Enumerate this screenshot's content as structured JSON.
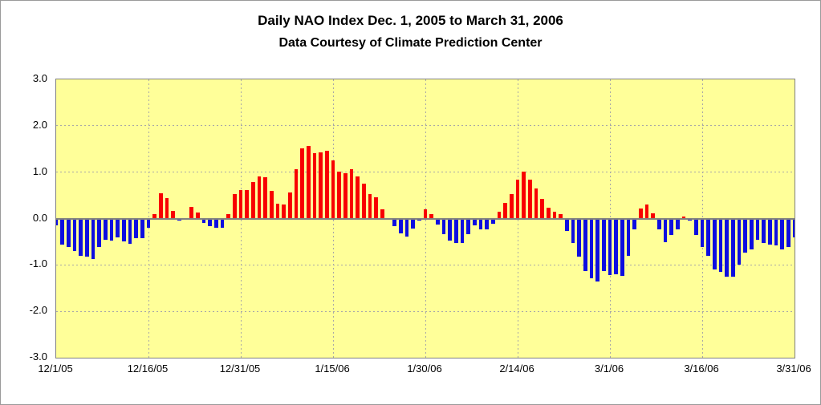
{
  "title": "Daily NAO Index Dec. 1, 2005 to March 31, 2006",
  "subtitle": "Data Courtesy of Climate Prediction Center",
  "chart_data": {
    "type": "bar",
    "title": "Daily NAO Index Dec. 1, 2005 to March 31, 2006",
    "subtitle": "Data Courtesy of Climate Prediction Center",
    "xlabel": "",
    "ylabel": "",
    "ylim": [
      -3.0,
      3.0
    ],
    "grid": true,
    "legend": null,
    "x_range_days": 121,
    "y_ticks": [
      {
        "label": "3.0",
        "value": 3.0
      },
      {
        "label": "2.0",
        "value": 2.0
      },
      {
        "label": "1.0",
        "value": 1.0
      },
      {
        "label": "0.0",
        "value": 0.0
      },
      {
        "label": "-1.0",
        "value": -1.0
      },
      {
        "label": "-2.0",
        "value": -2.0
      },
      {
        "label": "-3.0",
        "value": -3.0
      }
    ],
    "x_ticks": [
      {
        "label": "12/1/05",
        "day_index": 0
      },
      {
        "label": "12/16/05",
        "day_index": 15
      },
      {
        "label": "12/31/05",
        "day_index": 30
      },
      {
        "label": "1/15/06",
        "day_index": 45
      },
      {
        "label": "1/30/06",
        "day_index": 60
      },
      {
        "label": "2/14/06",
        "day_index": 75
      },
      {
        "label": "3/1/06",
        "day_index": 90
      },
      {
        "label": "3/16/06",
        "day_index": 105
      },
      {
        "label": "3/31/06",
        "day_index": 120
      }
    ],
    "series_note": "one value per day from 12/1/2005 (index 0) to 3/31/2006 (index 120)",
    "values": [
      -0.15,
      -0.57,
      -0.62,
      -0.7,
      -0.8,
      -0.82,
      -0.88,
      -0.62,
      -0.45,
      -0.48,
      -0.4,
      -0.5,
      -0.55,
      -0.43,
      -0.42,
      -0.2,
      0.1,
      0.55,
      0.44,
      0.17,
      -0.04,
      0.0,
      0.25,
      0.13,
      -0.09,
      -0.17,
      -0.2,
      -0.2,
      0.09,
      0.52,
      0.62,
      0.61,
      0.78,
      0.9,
      0.89,
      0.59,
      0.32,
      0.3,
      0.56,
      1.07,
      1.52,
      1.56,
      1.41,
      1.42,
      1.46,
      1.26,
      1.01,
      0.97,
      1.07,
      0.91,
      0.75,
      0.53,
      0.46,
      0.2,
      0.0,
      -0.16,
      -0.32,
      -0.39,
      -0.22,
      -0.04,
      0.2,
      0.1,
      -0.13,
      -0.33,
      -0.47,
      -0.52,
      -0.53,
      -0.34,
      -0.14,
      -0.23,
      -0.23,
      -0.11,
      0.14,
      0.33,
      0.52,
      0.83,
      1.02,
      0.83,
      0.65,
      0.43,
      0.23,
      0.14,
      0.1,
      -0.26,
      -0.52,
      -0.82,
      -1.14,
      -1.29,
      -1.35,
      -1.14,
      -1.22,
      -1.2,
      -1.23,
      -0.8,
      -0.24,
      0.22,
      0.3,
      0.12,
      -0.24,
      -0.51,
      -0.36,
      -0.23,
      0.04,
      -0.05,
      -0.36,
      -0.62,
      -0.81,
      -1.09,
      -1.15,
      -1.25,
      -1.25,
      -0.99,
      -0.74,
      -0.66,
      -0.46,
      -0.52,
      -0.56,
      -0.58,
      -0.67,
      -0.62,
      -0.4
    ],
    "colors": {
      "positive_bar": "#f80000",
      "negative_bar": "#0d0de0",
      "plot_background": "#ffff99",
      "gridline": "#a8a8a8",
      "zero_axis": "#808080",
      "text": "#000000"
    }
  }
}
